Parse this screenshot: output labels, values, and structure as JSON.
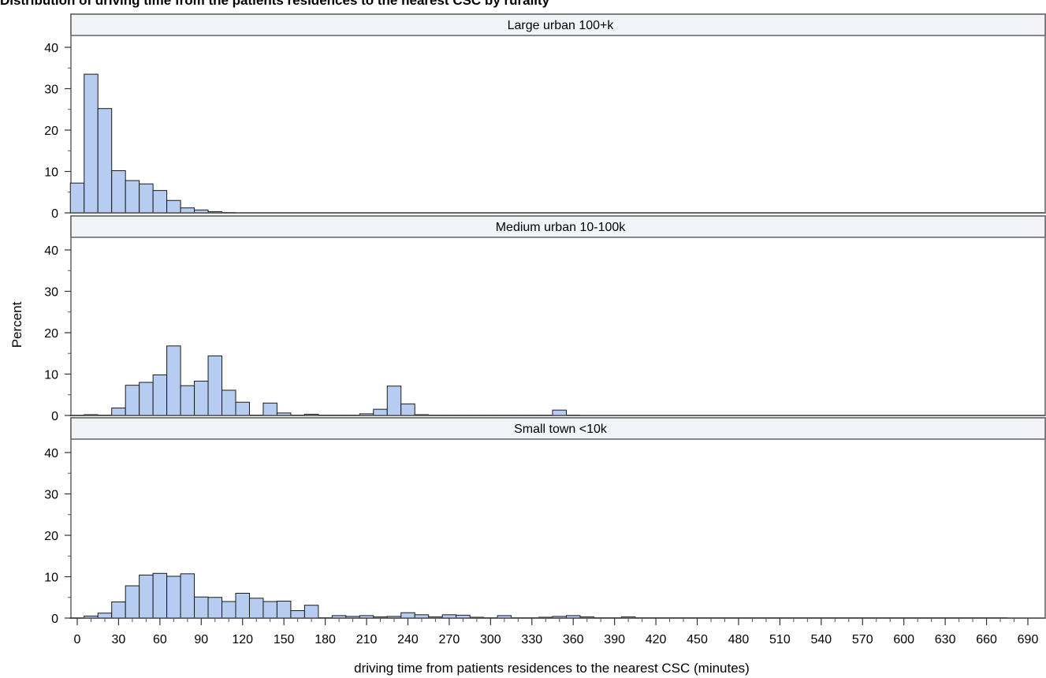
{
  "chart_data": {
    "type": "bar",
    "title": "Distribution of driving time from the patients residences to the nearest CSC by rurality",
    "xlabel": "driving time from patients residences to the nearest CSC (minutes)",
    "ylabel": "Percent",
    "bin_width": 10,
    "xlim": [
      0,
      690
    ],
    "ylim": [
      0,
      40
    ],
    "x_ticks": [
      0,
      30,
      60,
      90,
      120,
      150,
      180,
      210,
      240,
      270,
      300,
      330,
      360,
      390,
      420,
      450,
      480,
      510,
      540,
      570,
      600,
      630,
      660,
      690
    ],
    "y_ticks": [
      0,
      10,
      20,
      30,
      40
    ],
    "grid": false,
    "bar_color": "#b6cdf1",
    "panels": [
      {
        "name": "Large urban 100+k",
        "bins": [
          [
            0,
            7.2
          ],
          [
            10,
            33.5
          ],
          [
            20,
            25.2
          ],
          [
            30,
            10.2
          ],
          [
            40,
            7.8
          ],
          [
            50,
            7.0
          ],
          [
            60,
            5.4
          ],
          [
            70,
            3.0
          ],
          [
            80,
            1.2
          ],
          [
            90,
            0.7
          ],
          [
            100,
            0.3
          ],
          [
            110,
            0.1
          ]
        ]
      },
      {
        "name": "Medium urban 10-100k",
        "bins": [
          [
            0,
            0.05
          ],
          [
            10,
            0.2
          ],
          [
            20,
            0.1
          ],
          [
            30,
            1.8
          ],
          [
            40,
            7.3
          ],
          [
            50,
            8.0
          ],
          [
            60,
            9.8
          ],
          [
            70,
            16.8
          ],
          [
            80,
            7.2
          ],
          [
            90,
            8.3
          ],
          [
            100,
            14.4
          ],
          [
            110,
            6.1
          ],
          [
            120,
            3.2
          ],
          [
            130,
            0.1
          ],
          [
            140,
            3.0
          ],
          [
            150,
            0.6
          ],
          [
            160,
            0.1
          ],
          [
            170,
            0.3
          ],
          [
            180,
            0.1
          ],
          [
            190,
            0.1
          ],
          [
            200,
            0.1
          ],
          [
            210,
            0.4
          ],
          [
            220,
            1.5
          ],
          [
            230,
            7.1
          ],
          [
            240,
            2.8
          ],
          [
            250,
            0.2
          ],
          [
            260,
            0.1
          ],
          [
            270,
            0.1
          ],
          [
            280,
            0.1
          ],
          [
            290,
            0.1
          ],
          [
            300,
            0.1
          ],
          [
            310,
            0.1
          ],
          [
            320,
            0.1
          ],
          [
            330,
            0.1
          ],
          [
            340,
            0.1
          ],
          [
            350,
            1.3
          ],
          [
            360,
            0.1
          ]
        ]
      },
      {
        "name": "Small town <10k",
        "bins": [
          [
            0,
            0.05
          ],
          [
            10,
            0.5
          ],
          [
            20,
            1.2
          ],
          [
            30,
            3.9
          ],
          [
            40,
            7.8
          ],
          [
            50,
            10.4
          ],
          [
            60,
            10.8
          ],
          [
            70,
            10.1
          ],
          [
            80,
            10.7
          ],
          [
            90,
            5.1
          ],
          [
            100,
            5.0
          ],
          [
            110,
            4.0
          ],
          [
            120,
            6.0
          ],
          [
            130,
            4.8
          ],
          [
            140,
            4.0
          ],
          [
            150,
            4.1
          ],
          [
            160,
            1.8
          ],
          [
            170,
            3.1
          ],
          [
            180,
            0.1
          ],
          [
            190,
            0.6
          ],
          [
            200,
            0.4
          ],
          [
            210,
            0.6
          ],
          [
            220,
            0.3
          ],
          [
            230,
            0.4
          ],
          [
            240,
            1.3
          ],
          [
            250,
            0.8
          ],
          [
            260,
            0.3
          ],
          [
            270,
            0.8
          ],
          [
            280,
            0.7
          ],
          [
            290,
            0.2
          ],
          [
            300,
            0.1
          ],
          [
            310,
            0.6
          ],
          [
            320,
            0.1
          ],
          [
            330,
            0.1
          ],
          [
            340,
            0.2
          ],
          [
            350,
            0.4
          ],
          [
            360,
            0.6
          ],
          [
            370,
            0.3
          ],
          [
            380,
            0.1
          ],
          [
            390,
            0.1
          ],
          [
            400,
            0.3
          ],
          [
            410,
            0.1
          ],
          [
            420,
            0.1
          ],
          [
            430,
            0.1
          ],
          [
            440,
            0.1
          ],
          [
            450,
            0.1
          ],
          [
            460,
            0.1
          ],
          [
            470,
            0.1
          ],
          [
            480,
            0.1
          ],
          [
            490,
            0.1
          ],
          [
            500,
            0.1
          ],
          [
            510,
            0.1
          ],
          [
            520,
            0.1
          ],
          [
            530,
            0.1
          ],
          [
            540,
            0.1
          ],
          [
            550,
            0.1
          ],
          [
            560,
            0.1
          ],
          [
            570,
            0.1
          ],
          [
            580,
            0.1
          ],
          [
            590,
            0.1
          ],
          [
            600,
            0.1
          ],
          [
            610,
            0.1
          ],
          [
            620,
            0.1
          ],
          [
            630,
            0.1
          ],
          [
            640,
            0.1
          ],
          [
            650,
            0.1
          ],
          [
            660,
            0.1
          ],
          [
            670,
            0.1
          ]
        ]
      }
    ]
  }
}
